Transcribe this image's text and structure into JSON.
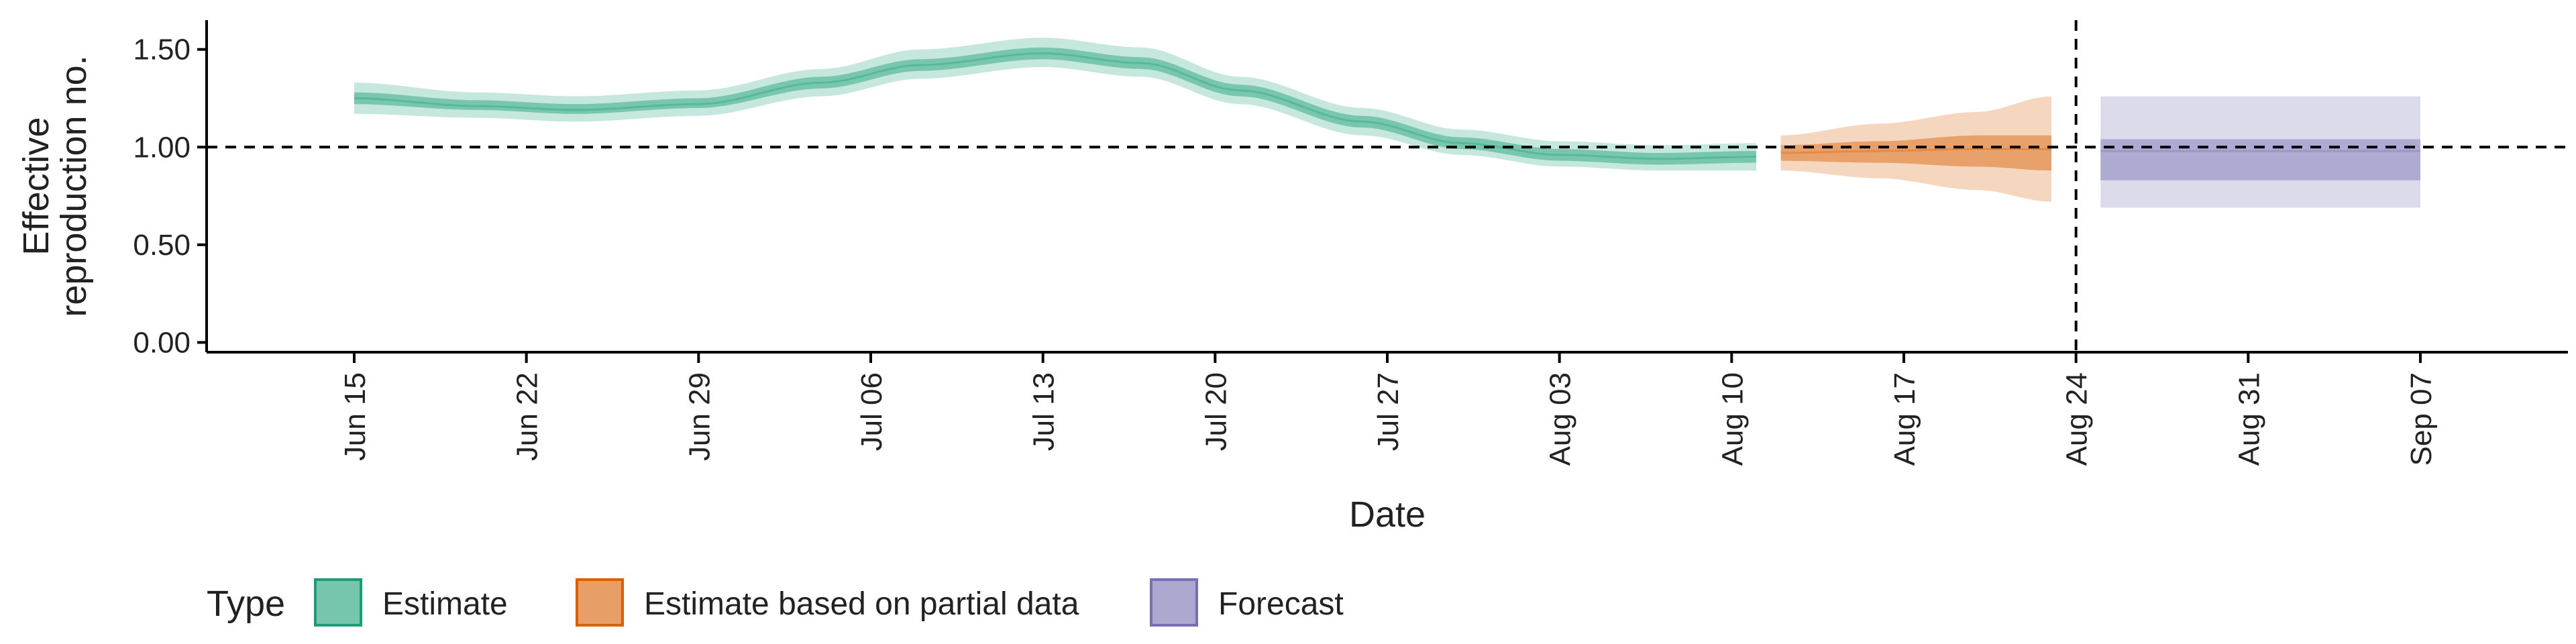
{
  "chart_data": {
    "type": "line",
    "title": "",
    "xlabel": "Date",
    "ylabel_lines": [
      "Effective",
      "reproduction no."
    ],
    "xlim": [
      "2020-06-09",
      "2020-09-13"
    ],
    "ylim": [
      -0.05,
      1.65
    ],
    "yticks": [
      0.0,
      0.5,
      1.0,
      1.5
    ],
    "ytick_labels": [
      "0.00",
      "0.50",
      "1.00",
      "1.50"
    ],
    "xticks": [
      "2020-06-15",
      "2020-06-22",
      "2020-06-29",
      "2020-07-06",
      "2020-07-13",
      "2020-07-20",
      "2020-07-27",
      "2020-08-03",
      "2020-08-10",
      "2020-08-17",
      "2020-08-24",
      "2020-08-31",
      "2020-09-07"
    ],
    "xtick_labels": [
      "Jun 15",
      "Jun 22",
      "Jun 29",
      "Jul 06",
      "Jul 13",
      "Jul 20",
      "Jul 27",
      "Aug 03",
      "Aug 10",
      "Aug 17",
      "Aug 24",
      "Aug 31",
      "Sep 07"
    ],
    "reference_hline": 1.0,
    "reference_vline": "2020-08-24",
    "grid": false,
    "legend_position": "bottom-left",
    "legend_title": "Type",
    "series": [
      {
        "name": "Estimate",
        "color": "#1b9e77",
        "points": [
          {
            "date": "2020-06-15",
            "median": 1.25,
            "lo50": 1.22,
            "hi50": 1.28,
            "lo90": 1.17,
            "hi90": 1.33
          },
          {
            "date": "2020-06-20",
            "median": 1.21,
            "lo50": 1.19,
            "hi50": 1.24,
            "lo90": 1.15,
            "hi90": 1.28
          },
          {
            "date": "2020-06-24",
            "median": 1.19,
            "lo50": 1.17,
            "hi50": 1.22,
            "lo90": 1.13,
            "hi90": 1.26
          },
          {
            "date": "2020-06-29",
            "median": 1.22,
            "lo50": 1.2,
            "hi50": 1.25,
            "lo90": 1.16,
            "hi90": 1.29
          },
          {
            "date": "2020-07-04",
            "median": 1.33,
            "lo50": 1.3,
            "hi50": 1.36,
            "lo90": 1.26,
            "hi90": 1.4
          },
          {
            "date": "2020-07-08",
            "median": 1.42,
            "lo50": 1.39,
            "hi50": 1.45,
            "lo90": 1.35,
            "hi90": 1.5
          },
          {
            "date": "2020-07-13",
            "median": 1.48,
            "lo50": 1.45,
            "hi50": 1.51,
            "lo90": 1.41,
            "hi90": 1.56
          },
          {
            "date": "2020-07-17",
            "median": 1.43,
            "lo50": 1.4,
            "hi50": 1.46,
            "lo90": 1.36,
            "hi90": 1.51
          },
          {
            "date": "2020-07-21",
            "median": 1.29,
            "lo50": 1.26,
            "hi50": 1.32,
            "lo90": 1.22,
            "hi90": 1.36
          },
          {
            "date": "2020-07-26",
            "median": 1.13,
            "lo50": 1.1,
            "hi50": 1.16,
            "lo90": 1.06,
            "hi90": 1.2
          },
          {
            "date": "2020-07-30",
            "median": 1.02,
            "lo50": 0.99,
            "hi50": 1.05,
            "lo90": 0.96,
            "hi90": 1.09
          },
          {
            "date": "2020-08-03",
            "median": 0.96,
            "lo50": 0.93,
            "hi50": 0.99,
            "lo90": 0.9,
            "hi90": 1.03
          },
          {
            "date": "2020-08-07",
            "median": 0.94,
            "lo50": 0.91,
            "hi50": 0.97,
            "lo90": 0.88,
            "hi90": 1.01
          },
          {
            "date": "2020-08-11",
            "median": 0.95,
            "lo50": 0.92,
            "hi50": 0.98,
            "lo90": 0.88,
            "hi90": 1.02
          }
        ]
      },
      {
        "name": "Estimate based on partial data",
        "color": "#d95f02",
        "points": [
          {
            "date": "2020-08-12",
            "median": 0.97,
            "lo50": 0.93,
            "hi50": 1.01,
            "lo90": 0.88,
            "hi90": 1.06
          },
          {
            "date": "2020-08-16",
            "median": 0.98,
            "lo50": 0.92,
            "hi50": 1.03,
            "lo90": 0.84,
            "hi90": 1.12
          },
          {
            "date": "2020-08-20",
            "median": 0.99,
            "lo50": 0.9,
            "hi50": 1.06,
            "lo90": 0.78,
            "hi90": 1.18
          },
          {
            "date": "2020-08-23",
            "median": 0.99,
            "lo50": 0.88,
            "hi50": 1.06,
            "lo90": 0.72,
            "hi90": 1.26
          }
        ]
      },
      {
        "name": "Forecast",
        "color": "#7570b3",
        "points": [
          {
            "date": "2020-08-25",
            "median": 0.98,
            "lo50": 0.83,
            "hi50": 1.04,
            "lo90": 0.69,
            "hi90": 1.26
          },
          {
            "date": "2020-09-07",
            "median": 0.98,
            "lo50": 0.83,
            "hi50": 1.04,
            "lo90": 0.69,
            "hi90": 1.26
          }
        ]
      }
    ]
  }
}
